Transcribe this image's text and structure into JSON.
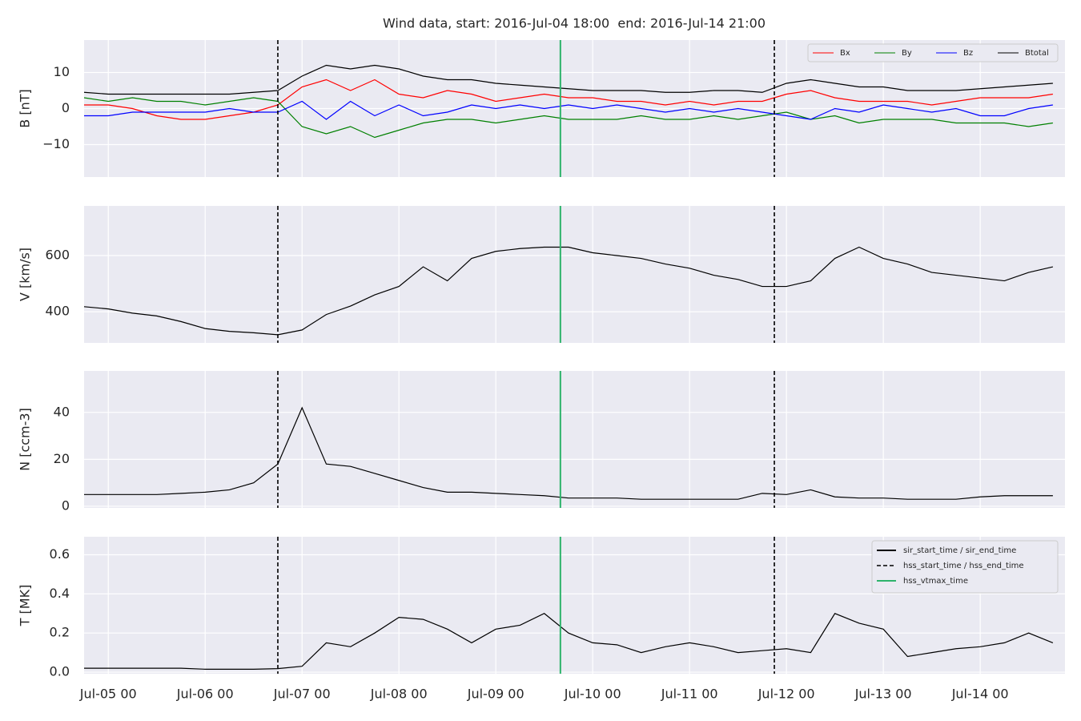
{
  "chart_data": {
    "type": "line",
    "title": "Wind data, start: 2016-Jul-04 18:00  end: 2016-Jul-14 21:00",
    "x": [
      "Jul-04 18",
      "Jul-05 00",
      "Jul-05 06",
      "Jul-05 12",
      "Jul-05 18",
      "Jul-06 00",
      "Jul-06 06",
      "Jul-06 12",
      "Jul-06 18",
      "Jul-07 00",
      "Jul-07 06",
      "Jul-07 12",
      "Jul-07 18",
      "Jul-08 00",
      "Jul-08 06",
      "Jul-08 12",
      "Jul-08 18",
      "Jul-09 00",
      "Jul-09 06",
      "Jul-09 12",
      "Jul-09 18",
      "Jul-10 00",
      "Jul-10 06",
      "Jul-10 12",
      "Jul-10 18",
      "Jul-11 00",
      "Jul-11 06",
      "Jul-11 12",
      "Jul-11 18",
      "Jul-12 00",
      "Jul-12 06",
      "Jul-12 12",
      "Jul-12 18",
      "Jul-13 00",
      "Jul-13 06",
      "Jul-13 12",
      "Jul-13 18",
      "Jul-14 00",
      "Jul-14 06",
      "Jul-14 12",
      "Jul-14 18"
    ],
    "xlim": [
      "Jul-04 18",
      "Jul-14 21"
    ],
    "xticks": [
      "Jul-05 00",
      "Jul-06 00",
      "Jul-07 00",
      "Jul-08 00",
      "Jul-09 00",
      "Jul-10 00",
      "Jul-11 00",
      "Jul-12 00",
      "Jul-13 00",
      "Jul-14 00"
    ],
    "grid": true,
    "vlines": [
      {
        "x": "Jul-06 18",
        "color": "#000000",
        "dashed": true
      },
      {
        "x": "Jul-11 21",
        "color": "#000000",
        "dashed": true
      },
      {
        "x": "Jul-09 16",
        "color": "#2db36b",
        "dashed": false
      }
    ],
    "panels": [
      {
        "ylabel": "B [nT]",
        "ylim": [
          -19,
          19
        ],
        "yticks": [
          {
            "value": -10,
            "label": "−10"
          },
          0,
          10
        ],
        "legend": "upper right",
        "legend_columns": 4,
        "series": [
          {
            "name": "Bx",
            "color": "#ff0000",
            "values": [
              1,
              1,
              0,
              -2,
              -3,
              -3,
              -2,
              -1,
              1,
              6,
              8,
              5,
              8,
              4,
              3,
              5,
              4,
              2,
              3,
              4,
              3,
              3,
              2,
              2,
              1,
              2,
              1,
              2,
              2,
              4,
              5,
              3,
              2,
              2,
              2,
              1,
              2,
              3,
              3,
              3,
              4
            ]
          },
          {
            "name": "By",
            "color": "#008000",
            "values": [
              3,
              2,
              3,
              2,
              2,
              1,
              2,
              3,
              2,
              -5,
              -7,
              -5,
              -8,
              -6,
              -4,
              -3,
              -3,
              -4,
              -3,
              -2,
              -3,
              -3,
              -3,
              -2,
              -3,
              -3,
              -2,
              -3,
              -2,
              -1,
              -3,
              -2,
              -4,
              -3,
              -3,
              -3,
              -4,
              -4,
              -4,
              -5,
              -4
            ]
          },
          {
            "name": "Bz",
            "color": "#0000ff",
            "values": [
              -2,
              -2,
              -1,
              -1,
              -1,
              -1,
              0,
              -1,
              -1,
              2,
              -3,
              2,
              -2,
              1,
              -2,
              -1,
              1,
              0,
              1,
              0,
              1,
              0,
              1,
              0,
              -1,
              0,
              -1,
              0,
              -1,
              -2,
              -3,
              0,
              -1,
              1,
              0,
              -1,
              0,
              -2,
              -2,
              0,
              1
            ]
          },
          {
            "name": "Btotal",
            "color": "#000000",
            "values": [
              4.5,
              4,
              4,
              4,
              4,
              4,
              4,
              4.5,
              5,
              9,
              12,
              11,
              12,
              11,
              9,
              8,
              8,
              7,
              6.5,
              6,
              5.5,
              5,
              5,
              5,
              4.5,
              4.5,
              5,
              5,
              4.5,
              7,
              8,
              7,
              6,
              6,
              5,
              5,
              5,
              5.5,
              6,
              6.5,
              7
            ]
          }
        ]
      },
      {
        "ylabel": "V [km/s]",
        "ylim": [
          289,
          777
        ],
        "yticks": [
          400,
          600
        ],
        "series": [
          {
            "color": "#000000",
            "values": [
              418,
              410,
              395,
              385,
              365,
              340,
              330,
              325,
              318,
              335,
              390,
              420,
              460,
              490,
              560,
              510,
              590,
              615,
              625,
              630,
              630,
              610,
              600,
              590,
              570,
              555,
              530,
              515,
              490,
              490,
              510,
              590,
              630,
              590,
              570,
              540,
              530,
              520,
              510,
              540,
              560
            ]
          }
        ]
      },
      {
        "ylabel": "N [ccm-3]",
        "ylim": [
          -0.7,
          57.7
        ],
        "yticks": [
          0,
          20,
          40
        ],
        "series": [
          {
            "color": "#000000",
            "values": [
              5,
              5,
              5,
              5,
              5.5,
              6,
              7,
              10,
              18,
              42,
              18,
              17,
              14,
              11,
              8,
              6,
              6,
              5.5,
              5,
              4.5,
              3.5,
              3.5,
              3.5,
              3,
              3,
              3,
              3,
              3,
              5.5,
              5,
              7,
              4,
              3.5,
              3.5,
              3,
              3,
              3,
              4,
              4.5,
              4.5,
              4.5
            ]
          }
        ]
      },
      {
        "ylabel": "T [MK]",
        "ylim": [
          -0.008,
          0.692
        ],
        "yticks": [
          {
            "value": 0,
            "label": "0.0"
          },
          0.2,
          0.4,
          0.6
        ],
        "legend": "upper right",
        "legend_columns": 1,
        "legend_items": [
          {
            "name": "sir_start_time / sir_end_time",
            "color": "#000000",
            "dashed": false
          },
          {
            "name": "hss_start_time / hss_end_time",
            "color": "#000000",
            "dashed": true
          },
          {
            "name": "hss_vtmax_time",
            "color": "#2db36b",
            "dashed": false
          }
        ],
        "series": [
          {
            "color": "#000000",
            "values": [
              0.02,
              0.02,
              0.02,
              0.02,
              0.02,
              0.015,
              0.015,
              0.015,
              0.018,
              0.03,
              0.15,
              0.13,
              0.2,
              0.28,
              0.27,
              0.22,
              0.15,
              0.22,
              0.24,
              0.3,
              0.2,
              0.15,
              0.14,
              0.1,
              0.13,
              0.15,
              0.13,
              0.1,
              0.11,
              0.12,
              0.1,
              0.3,
              0.25,
              0.22,
              0.08,
              0.1,
              0.12,
              0.13,
              0.15,
              0.2,
              0.15
            ]
          }
        ]
      }
    ]
  }
}
